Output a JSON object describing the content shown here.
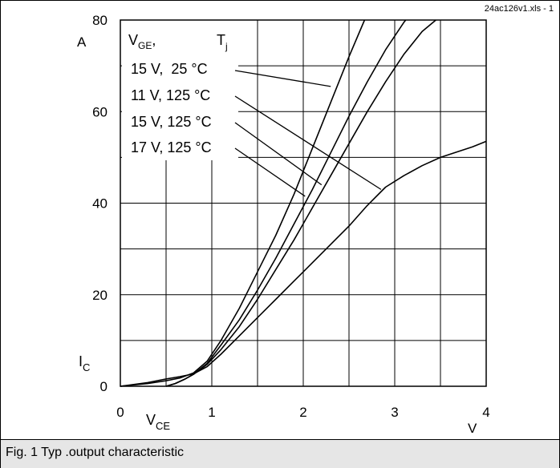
{
  "chart_data": {
    "type": "line",
    "file_label": "24ac126v1.xls - 1",
    "xlim": [
      0,
      4
    ],
    "ylim": [
      0,
      80
    ],
    "x_ticks": [
      "0",
      "1",
      "2",
      "3",
      "4"
    ],
    "y_ticks": [
      "0",
      "20",
      "40",
      "60",
      "80"
    ],
    "x_unit": "V",
    "y_unit": "A",
    "grid": true,
    "legend": {
      "header_vge": "V",
      "header_vge_sub": "GE",
      "header_vge_suffix": ",",
      "header_tj": "T",
      "header_tj_sub": "j",
      "entries": [
        {
          "label": "15 V,  25 °C",
          "target": "15 V, 25 °C"
        },
        {
          "label": "11 V, 125 °C",
          "target": "11 V, 125 °C"
        },
        {
          "label": "15 V, 125 °C",
          "target": "15 V, 125 °C"
        },
        {
          "label": "17 V, 125 °C",
          "target": "17 V, 125 °C"
        }
      ]
    },
    "series": [
      {
        "name": "15 V, 25 °C",
        "points": [
          [
            0,
            0
          ],
          [
            0.3,
            0.6
          ],
          [
            0.5,
            1.2
          ],
          [
            0.65,
            1.8
          ],
          [
            0.8,
            2.9
          ],
          [
            0.95,
            5.5
          ],
          [
            1.1,
            10
          ],
          [
            1.3,
            17
          ],
          [
            1.5,
            25
          ],
          [
            1.7,
            33
          ],
          [
            1.9,
            42
          ],
          [
            2.1,
            52
          ],
          [
            2.3,
            62
          ],
          [
            2.5,
            72
          ],
          [
            2.67,
            80
          ]
        ]
      },
      {
        "name": "11 V, 125 °C",
        "points": [
          [
            0,
            0
          ],
          [
            0.3,
            0.8
          ],
          [
            0.5,
            1.6
          ],
          [
            0.65,
            2.1
          ],
          [
            0.8,
            2.7
          ],
          [
            0.95,
            4.3
          ],
          [
            1.1,
            7
          ],
          [
            1.3,
            11
          ],
          [
            1.5,
            15
          ],
          [
            1.7,
            19
          ],
          [
            1.9,
            23
          ],
          [
            2.1,
            27
          ],
          [
            2.3,
            31
          ],
          [
            2.5,
            35
          ],
          [
            2.7,
            39.5
          ],
          [
            2.9,
            43.5
          ],
          [
            3.1,
            46
          ],
          [
            3.3,
            48.2
          ],
          [
            3.5,
            50
          ],
          [
            3.7,
            51.3
          ],
          [
            3.85,
            52.3
          ],
          [
            4,
            53.5
          ]
        ]
      },
      {
        "name": "15 V, 125 °C",
        "points": [
          [
            0.5,
            0
          ],
          [
            0.6,
            0.6
          ],
          [
            0.7,
            1.5
          ],
          [
            0.8,
            2.6
          ],
          [
            0.95,
            4.8
          ],
          [
            1.1,
            8
          ],
          [
            1.3,
            13
          ],
          [
            1.5,
            19
          ],
          [
            1.7,
            25.5
          ],
          [
            1.9,
            32
          ],
          [
            2.1,
            39
          ],
          [
            2.3,
            46
          ],
          [
            2.5,
            53
          ],
          [
            2.7,
            60
          ],
          [
            2.9,
            66.5
          ],
          [
            3.1,
            72.5
          ],
          [
            3.3,
            77.5
          ],
          [
            3.45,
            80
          ]
        ]
      },
      {
        "name": "17 V, 125 °C",
        "points": [
          [
            0.5,
            0
          ],
          [
            0.6,
            0.6
          ],
          [
            0.7,
            1.5
          ],
          [
            0.8,
            2.6
          ],
          [
            0.95,
            5
          ],
          [
            1.1,
            9
          ],
          [
            1.3,
            14.5
          ],
          [
            1.5,
            21
          ],
          [
            1.7,
            28
          ],
          [
            1.9,
            35.5
          ],
          [
            2.1,
            43
          ],
          [
            2.3,
            51
          ],
          [
            2.5,
            59
          ],
          [
            2.7,
            66.5
          ],
          [
            2.9,
            73.5
          ],
          [
            3.1,
            79.5
          ],
          [
            3.12,
            80
          ]
        ]
      }
    ],
    "leaders": [
      {
        "series": "15 V, 25 °C",
        "at": [
          2.3,
          65.5
        ]
      },
      {
        "series": "11 V, 125 °C",
        "at": [
          2.85,
          43
        ]
      },
      {
        "series": "15 V, 125 °C",
        "at": [
          2.2,
          44
        ]
      },
      {
        "series": "17 V, 125 °C",
        "at": [
          2.02,
          41.5
        ]
      }
    ]
  },
  "axis": {
    "y_symbol": "I",
    "y_symbol_sub": "C",
    "x_symbol": "V",
    "x_symbol_sub": "CE"
  },
  "caption": "Fig. 1 Typ .output characteristic"
}
